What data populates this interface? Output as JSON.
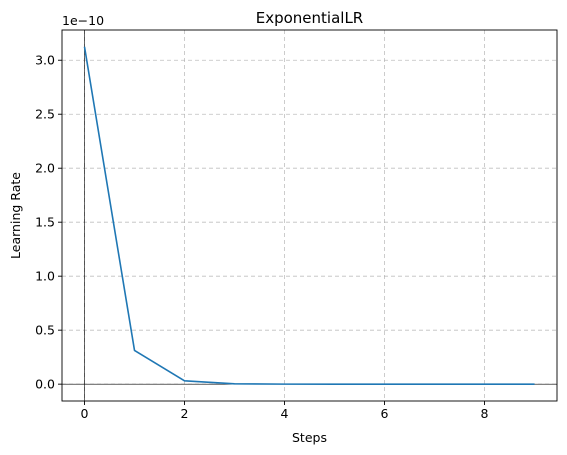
{
  "chart_data": {
    "type": "line",
    "title": "ExponentialLR",
    "xlabel": "Steps",
    "ylabel": "Learning Rate",
    "y_offset_label": "1e−10",
    "y_scale_exponent": -10,
    "xlim": [
      -0.45,
      9.45
    ],
    "ylim": [
      -0.156,
      3.28
    ],
    "x_ticks": [
      0,
      2,
      4,
      6,
      8
    ],
    "x_tick_labels": [
      "0",
      "2",
      "4",
      "6",
      "8"
    ],
    "y_ticks": [
      0.0,
      0.5,
      1.0,
      1.5,
      2.0,
      2.5,
      3.0
    ],
    "y_tick_labels": [
      "0.0",
      "0.5",
      "1.0",
      "1.5",
      "2.0",
      "2.5",
      "3.0"
    ],
    "grid": true,
    "reference_lines": {
      "x": 0,
      "y": 0
    },
    "series": [
      {
        "color": "#1f77b4",
        "x": [
          0,
          1,
          2,
          3,
          4,
          5,
          6,
          7,
          8,
          9
        ],
        "values": [
          3.125,
          0.3125,
          0.03125,
          0.003125,
          0.0003125,
          3.125e-05,
          3.125e-06,
          3.125e-07,
          3.125e-08,
          3.125e-09
        ]
      }
    ]
  }
}
